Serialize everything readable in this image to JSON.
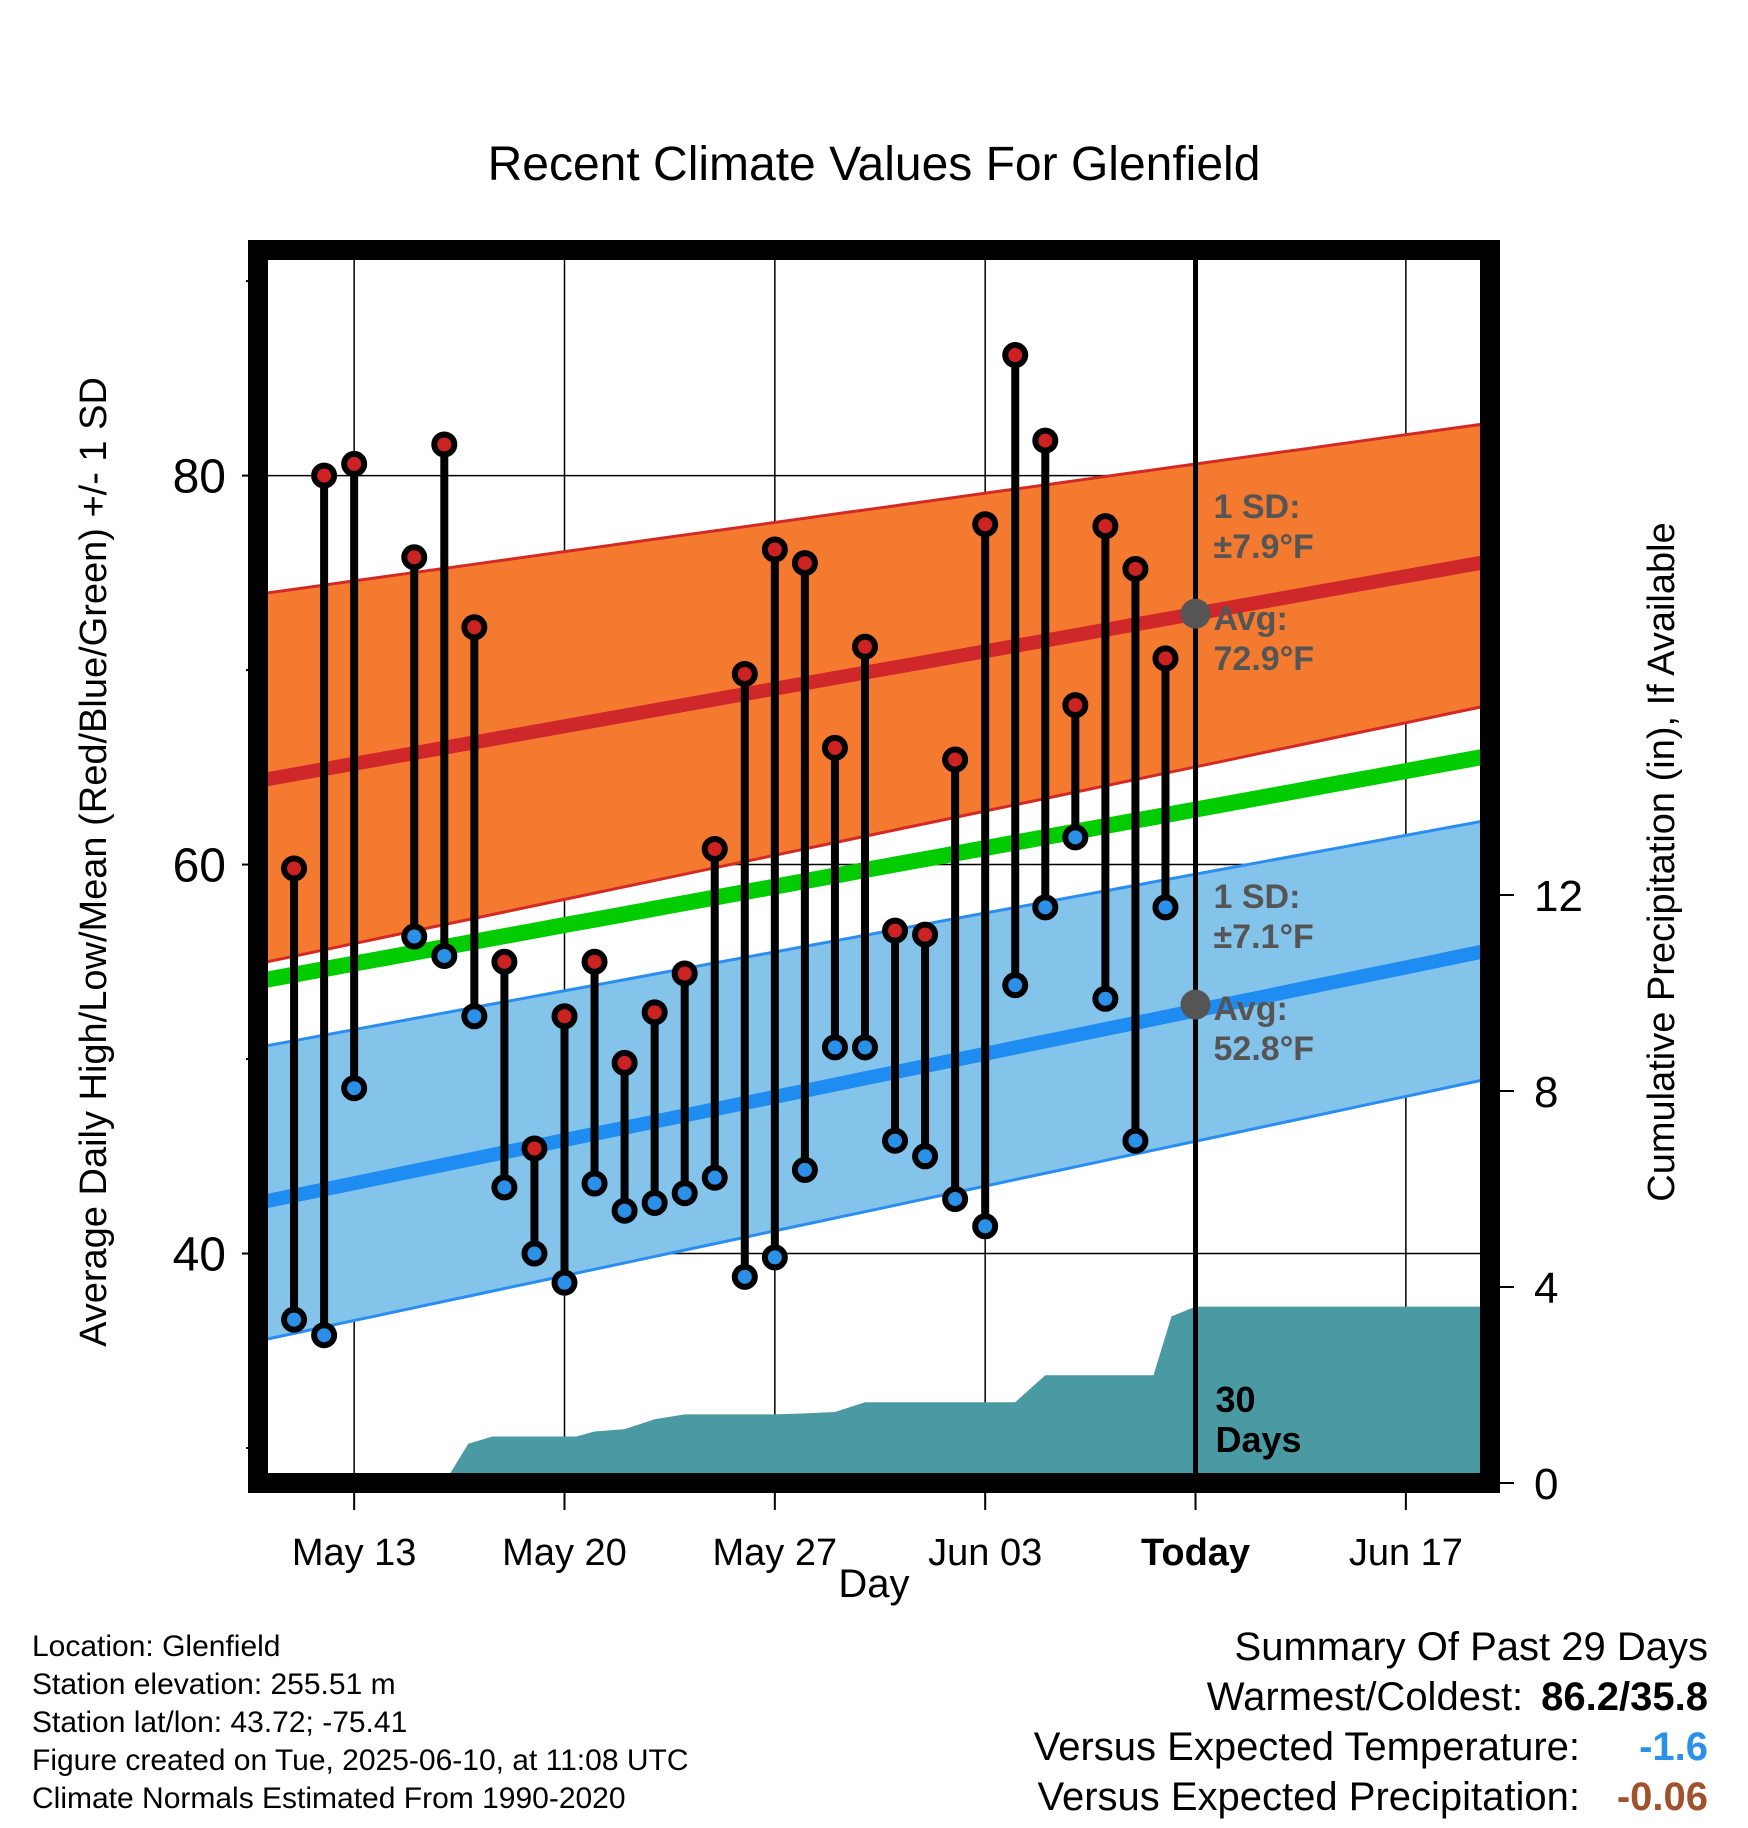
{
  "colors": {
    "high_band": "#f47a30",
    "high_edge": "#d42a24",
    "high_avg": "#d0282a",
    "low_band": "#84c4ea",
    "low_edge": "#2a8ef0",
    "low_avg": "#1e8cf0",
    "mean_line": "#00cc00",
    "precip": "#4a9aa4",
    "high_dot": "#cc2222",
    "low_dot": "#2a90e8",
    "marker": "#555555",
    "annotation": "#555555",
    "temp_anomaly": "#2a90e8",
    "precip_anomaly": "#a0522d"
  },
  "chart_data": {
    "type": "line",
    "title": "Recent Climate Values For Glenfield",
    "xlabel": "Day",
    "ylabel": "Average Daily High/Low/Mean (Red/Blue/Green) +/- 1 SD",
    "y2label": "Cumulative Precipitation (in), If Available",
    "x_ticks": [
      "May 13",
      "May 20",
      "May 27",
      "Jun 03",
      "Today",
      "Jun 17"
    ],
    "x_tick_days": [
      13,
      20,
      27,
      34,
      41,
      48
    ],
    "xlim": [
      9.8,
      50.8
    ],
    "ylim": [
      28.2,
      91.6
    ],
    "y_ticks": [
      40,
      60,
      80
    ],
    "y_minor_ticks": [
      30,
      50,
      70,
      90
    ],
    "y2_range_at_axis": [
      0,
      16
    ],
    "y2_ticks": [
      0,
      4,
      8,
      12
    ],
    "today_day": 41,
    "grid": true,
    "normals": {
      "day": [
        9.8,
        50.8
      ],
      "avg_high": [
        64.3,
        75.6
      ],
      "high_sd_upper": [
        73.9,
        82.7
      ],
      "high_sd_lower": [
        54.9,
        68.2
      ],
      "avg_mean": [
        54.0,
        65.6
      ],
      "avg_low": [
        42.6,
        55.6
      ],
      "low_sd_upper": [
        50.6,
        62.3
      ],
      "low_sd_lower": [
        35.5,
        49.0
      ]
    },
    "daily": [
      {
        "day": 11,
        "high": 59.8,
        "low": 36.6
      },
      {
        "day": 12,
        "high": 80.0,
        "low": 35.8
      },
      {
        "day": 13,
        "high": 80.6,
        "low": 48.5
      },
      {
        "day": 15,
        "high": 75.8,
        "low": 56.3
      },
      {
        "day": 16,
        "high": 81.6,
        "low": 55.3
      },
      {
        "day": 17,
        "high": 72.2,
        "low": 52.2
      },
      {
        "day": 18,
        "high": 55.0,
        "low": 43.4
      },
      {
        "day": 19,
        "high": 45.4,
        "low": 40.0
      },
      {
        "day": 20,
        "high": 52.2,
        "low": 38.5
      },
      {
        "day": 21,
        "high": 55.0,
        "low": 43.6
      },
      {
        "day": 22,
        "high": 49.8,
        "low": 42.2
      },
      {
        "day": 23,
        "high": 52.4,
        "low": 42.6
      },
      {
        "day": 24,
        "high": 54.4,
        "low": 43.1
      },
      {
        "day": 25,
        "high": 60.8,
        "low": 43.9
      },
      {
        "day": 26,
        "high": 69.8,
        "low": 38.8
      },
      {
        "day": 27,
        "high": 76.2,
        "low": 39.8
      },
      {
        "day": 28,
        "high": 75.5,
        "low": 44.3
      },
      {
        "day": 29,
        "high": 66.0,
        "low": 50.6
      },
      {
        "day": 30,
        "high": 71.2,
        "low": 50.6
      },
      {
        "day": 31,
        "high": 56.6,
        "low": 45.8
      },
      {
        "day": 32,
        "high": 56.4,
        "low": 45.0
      },
      {
        "day": 33,
        "high": 65.4,
        "low": 42.8
      },
      {
        "day": 34,
        "high": 77.5,
        "low": 41.4
      },
      {
        "day": 35,
        "high": 86.2,
        "low": 53.8
      },
      {
        "day": 36,
        "high": 81.8,
        "low": 57.8
      },
      {
        "day": 37,
        "high": 68.2,
        "low": 61.4
      },
      {
        "day": 38,
        "high": 77.4,
        "low": 53.1
      },
      {
        "day": 39,
        "high": 75.2,
        "low": 45.8
      },
      {
        "day": 40,
        "high": 70.6,
        "low": 57.8
      }
    ],
    "precip_cumulative": {
      "day": [
        16.0,
        16.8,
        17.6,
        18.4,
        19.4,
        20.4,
        21.0,
        22.0,
        23.0,
        24.0,
        25.0,
        26.0,
        27.0,
        28.0,
        29.0,
        30.0,
        31.0,
        32.0,
        33.0,
        34.0,
        35.0,
        36.0,
        36.6,
        37.0,
        37.6,
        38.2,
        38.8,
        39.6,
        40.2,
        41.0,
        50.8
      ],
      "value": [
        0.0,
        0.8,
        0.95,
        0.95,
        0.95,
        0.95,
        1.05,
        1.1,
        1.3,
        1.4,
        1.4,
        1.4,
        1.4,
        1.42,
        1.45,
        1.65,
        1.65,
        1.65,
        1.65,
        1.65,
        1.65,
        2.2,
        2.2,
        2.2,
        2.2,
        2.2,
        2.2,
        2.2,
        3.4,
        3.6,
        3.6
      ]
    },
    "annotations": {
      "high_sd": "1 SD:",
      "high_sd_value": "±7.9°F",
      "high_avg": "Avg:",
      "high_avg_value": "72.9°F",
      "high_avg_marker": 72.9,
      "low_sd": "1 SD:",
      "low_sd_value": "±7.1°F",
      "low_avg": "Avg:",
      "low_avg_value": "52.8°F",
      "low_avg_marker": 52.8,
      "days_label": "30",
      "days_label_2": "Days"
    }
  },
  "footer": {
    "location": "Location: Glenfield",
    "elevation": "Station elevation: 255.51 m",
    "latlon": "Station lat/lon: 43.72; -75.41",
    "created": "Figure created on Tue, 2025-06-10, at 11:08 UTC",
    "normals": "Climate Normals Estimated From 1990-2020"
  },
  "summary": {
    "title": "Summary Of Past 29 Days",
    "extremes_label": "Warmest/Coldest:",
    "extremes_value": "86.2/35.8",
    "temp_label": "Versus Expected Temperature:",
    "temp_value": "-1.6",
    "precip_label": "Versus Expected Precipitation:",
    "precip_value": "-0.06"
  }
}
